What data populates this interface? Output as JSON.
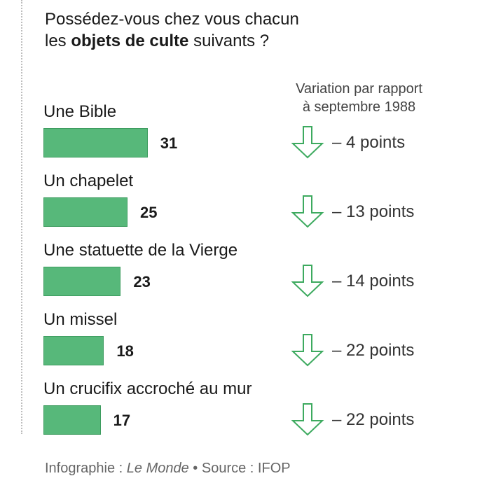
{
  "header": {
    "title_line1": "Possédez-vous chez vous chacun",
    "title_prefix": "les",
    "title_bold": "objets de culte",
    "title_suffix": "suivants ?",
    "variation_header_line1": "Variation par rapport",
    "variation_header_line2": "à septembre 1988"
  },
  "colors": {
    "bar": "#57b87a",
    "arrow": "#3daa5f"
  },
  "chart_data": {
    "type": "bar",
    "orientation": "horizontal",
    "title": "Possédez-vous chez vous chacun les objets de culte suivants ?",
    "categories": [
      "Une Bible",
      "Un chapelet",
      "Une statuette de la Vierge",
      "Un missel",
      "Un crucifix accroché au mur"
    ],
    "values": [
      31,
      25,
      23,
      18,
      17
    ],
    "variation_values": [
      -4,
      -13,
      -14,
      -22,
      -22
    ],
    "variation_labels": [
      "– 4 points",
      "– 13 points",
      "– 14 points",
      "– 22 points",
      "– 22 points"
    ],
    "grid": false
  },
  "footer": {
    "prefix": "Infographie :",
    "publication": "Le Monde",
    "separator": "•",
    "source": "Source : IFOP"
  }
}
